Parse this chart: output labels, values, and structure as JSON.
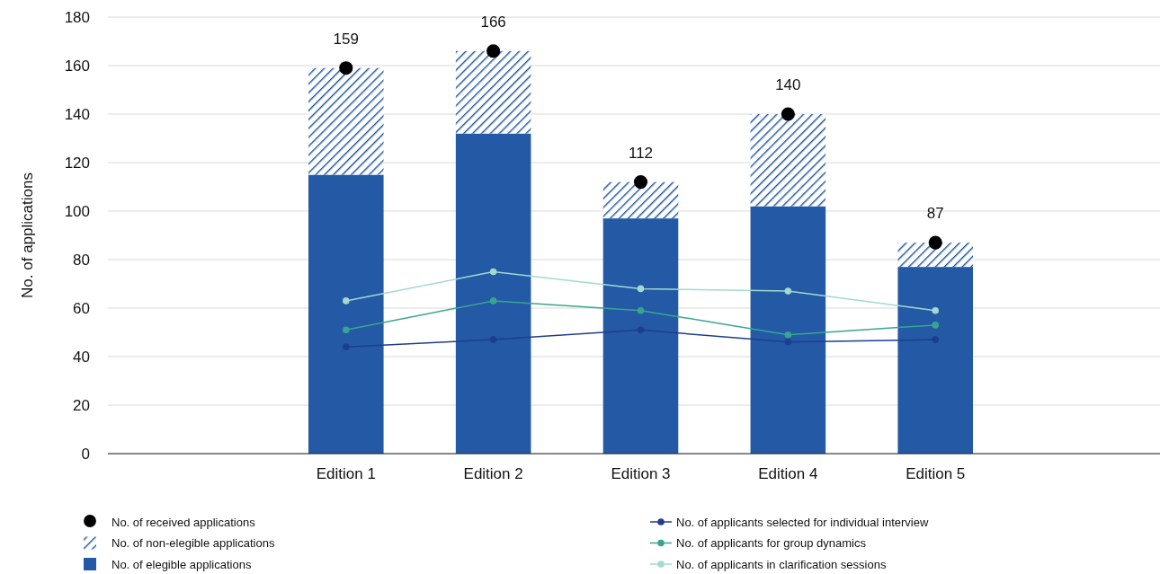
{
  "chart_data": {
    "type": "bar",
    "ylabel": "No. of applications",
    "categories": [
      null,
      "Edition 1",
      "Edition 2",
      "Edition 3",
      "Edition 4",
      "Edition 5",
      null
    ],
    "stacked": true,
    "ylim": [
      0,
      180
    ],
    "yticks": [
      0,
      20,
      40,
      60,
      80,
      100,
      120,
      140,
      160,
      180
    ],
    "grid": "y",
    "legend": "bottom",
    "marker": "circle",
    "series": [
      {
        "name": "No. of elegible applications",
        "color": "#2359a5",
        "values": [
          null,
          115,
          132,
          97,
          102,
          77,
          null
        ]
      },
      {
        "name": "No. of non-elegible applications",
        "color": "#2359a5",
        "values": [
          null,
          44,
          34,
          15,
          38,
          10,
          null
        ]
      },
      {
        "name": "No. of received applications",
        "type": "scatter",
        "color": "#000000",
        "values": [
          null,
          159,
          166,
          112,
          140,
          87,
          null
        ],
        "value_labels": [
          null,
          "159",
          "166",
          "112",
          "140",
          "87",
          null
        ]
      },
      {
        "name": "No. of applicants selected for individual interview",
        "type": "line",
        "color": "#1f3d8f",
        "values": [
          null,
          44,
          47,
          51,
          46,
          47,
          null
        ]
      },
      {
        "name": "No. of applicants for group dynamics",
        "type": "line",
        "color": "#3aa58f",
        "values": [
          null,
          51,
          63,
          59,
          49,
          53,
          null
        ]
      },
      {
        "name": "No. of applicants in clarification sessions",
        "type": "line",
        "color": "#a3d9cf",
        "values": [
          null,
          63,
          75,
          68,
          67,
          59,
          null
        ]
      }
    ]
  }
}
